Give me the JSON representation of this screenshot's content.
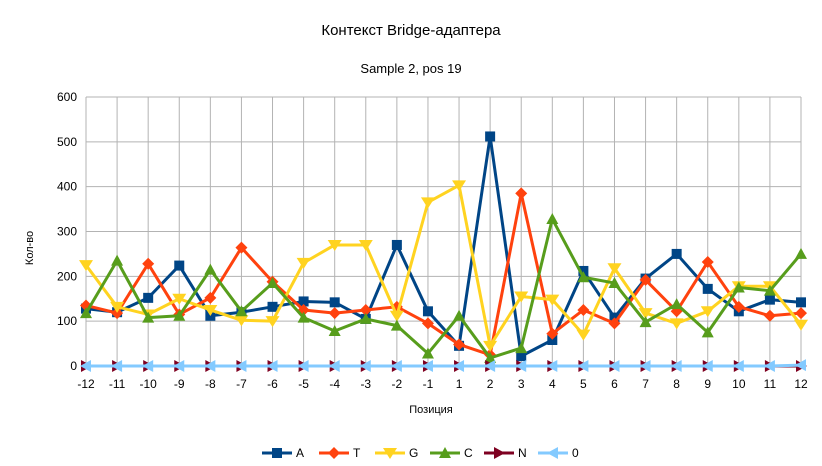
{
  "chart_data": {
    "type": "line",
    "title": "Контекст Bridge-адаптера",
    "subtitle": "Sample 2, pos 19",
    "xlabel": "Позиция",
    "ylabel": "Кол-во",
    "ylim": [
      0,
      600
    ],
    "yticks": [
      0,
      100,
      200,
      300,
      400,
      500,
      600
    ],
    "grid": true,
    "legend": "bottom",
    "categories": [
      "-12",
      "-11",
      "-10",
      "-9",
      "-8",
      "-7",
      "-6",
      "-5",
      "-4",
      "-3",
      "-2",
      "-1",
      "1",
      "2",
      "3",
      "4",
      "5",
      "6",
      "7",
      "8",
      "9",
      "10",
      "11",
      "12"
    ],
    "series": [
      {
        "name": "A",
        "color": "#004586",
        "marker": "square",
        "values": [
          128,
          120,
          152,
          224,
          112,
          120,
          132,
          144,
          142,
          105,
          270,
          122,
          45,
          512,
          22,
          58,
          212,
          108,
          195,
          250,
          172,
          122,
          148,
          142
        ]
      },
      {
        "name": "T",
        "color": "#ff420e",
        "marker": "diamond",
        "values": [
          135,
          118,
          228,
          115,
          152,
          264,
          188,
          125,
          118,
          125,
          132,
          95,
          48,
          25,
          385,
          72,
          125,
          95,
          192,
          122,
          232,
          132,
          112,
          118
        ]
      },
      {
        "name": "G",
        "color": "#ffd320",
        "marker": "arrow",
        "values": [
          225,
          132,
          115,
          150,
          125,
          102,
          100,
          230,
          270,
          270,
          112,
          365,
          403,
          45,
          155,
          148,
          70,
          218,
          118,
          95,
          122,
          178,
          178,
          92
        ]
      },
      {
        "name": "C",
        "color": "#579d1c",
        "marker": "triangle",
        "values": [
          118,
          235,
          108,
          112,
          215,
          122,
          185,
          108,
          78,
          105,
          90,
          28,
          112,
          18,
          40,
          328,
          198,
          185,
          98,
          138,
          75,
          175,
          168,
          250
        ]
      },
      {
        "name": "N",
        "color": "#7e0021",
        "marker": "triangle-right",
        "values": [
          0,
          0,
          0,
          0,
          0,
          0,
          0,
          0,
          0,
          0,
          0,
          0,
          0,
          0,
          0,
          0,
          0,
          0,
          0,
          0,
          0,
          0,
          0,
          0
        ]
      },
      {
        "name": "0",
        "color": "#83caff",
        "marker": "triangle-left",
        "values": [
          0,
          0,
          0,
          0,
          0,
          0,
          0,
          0,
          0,
          0,
          0,
          0,
          0,
          0,
          0,
          0,
          0,
          0,
          0,
          0,
          0,
          0,
          0,
          2
        ]
      }
    ]
  }
}
